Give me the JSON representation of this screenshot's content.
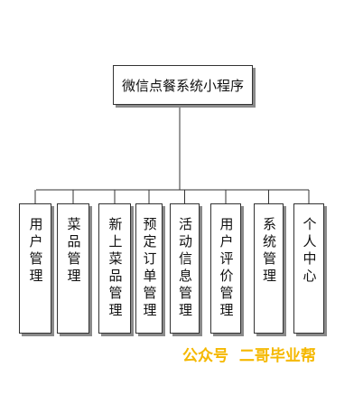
{
  "root": {
    "label": "微信点餐系统小程序"
  },
  "modules": [
    {
      "label": "用户管理"
    },
    {
      "label": "菜品管理"
    },
    {
      "label": "新上菜品管理"
    },
    {
      "label": "预定订单管理"
    },
    {
      "label": "活动信息管理"
    },
    {
      "label": "用户评价管理"
    },
    {
      "label": "系统管理"
    },
    {
      "label": "个人中心"
    }
  ],
  "watermark": {
    "text": "公众号  二哥毕业帮"
  },
  "colors": {
    "line": "#333333",
    "shadow": "#8a8a8a",
    "watermark": "#f5b800"
  }
}
